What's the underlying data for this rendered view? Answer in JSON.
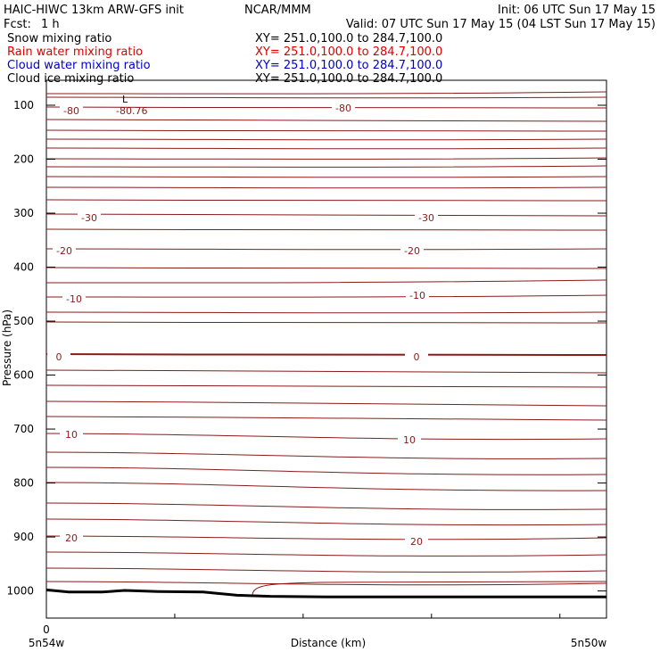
{
  "header": {
    "model": "HAIC-HIWC 13km ARW-GFS init",
    "org": "NCAR/MMM",
    "init": "Init: 06 UTC Sun 17 May 15",
    "fcst_label": "Fcst:",
    "fcst_value": "1 h",
    "valid": "Valid: 07 UTC Sun 17 May 15 (04 LST Sun 17 May 15)"
  },
  "legend": [
    {
      "name": "Snow mixing ratio",
      "xy": "XY= 251.0,100.0 to 284.7,100.0",
      "color": "#000000"
    },
    {
      "name": "Rain water mixing ratio",
      "xy": "XY= 251.0,100.0 to 284.7,100.0",
      "color": "#e00000"
    },
    {
      "name": "Cloud water mixing ratio",
      "xy": "XY= 251.0,100.0 to 284.7,100.0",
      "color": "#0000c8"
    },
    {
      "name": "Cloud ice mixing ratio",
      "xy": "XY= 251.0,100.0 to 284.7,100.0",
      "color": "#000000"
    }
  ],
  "chart_data": {
    "type": "line",
    "ylabel": "Pressure (hPa)",
    "xlabel": "Distance (km)",
    "x_start_label": "0",
    "left_point_label": "5n54w",
    "right_point_label": "5n50w",
    "y_ticks": [
      100,
      200,
      300,
      400,
      500,
      600,
      700,
      800,
      900,
      1000
    ],
    "ylim": [
      1050,
      50
    ],
    "xlim": [
      0,
      1
    ],
    "isotherm_color": "#8b1a1a",
    "terrain_color": "#000000",
    "isotherm_interval_C": 5,
    "low_marker": {
      "symbol": "L",
      "value": "-80.76"
    },
    "contour_labels": [
      "-80",
      "-80",
      "-30",
      "-30",
      "-20",
      "-20",
      "-10",
      "-10",
      "0",
      "0",
      "10",
      "10",
      "20",
      "20"
    ],
    "terrain_pressure": [
      {
        "x": 0.0,
        "p": 998
      },
      {
        "x": 0.04,
        "p": 1002
      },
      {
        "x": 0.1,
        "p": 1002
      },
      {
        "x": 0.14,
        "p": 999
      },
      {
        "x": 0.2,
        "p": 1001
      },
      {
        "x": 0.28,
        "p": 1002
      },
      {
        "x": 0.34,
        "p": 1008
      },
      {
        "x": 0.4,
        "p": 1010
      },
      {
        "x": 0.5,
        "p": 1011
      },
      {
        "x": 1.0,
        "p": 1011
      }
    ]
  }
}
